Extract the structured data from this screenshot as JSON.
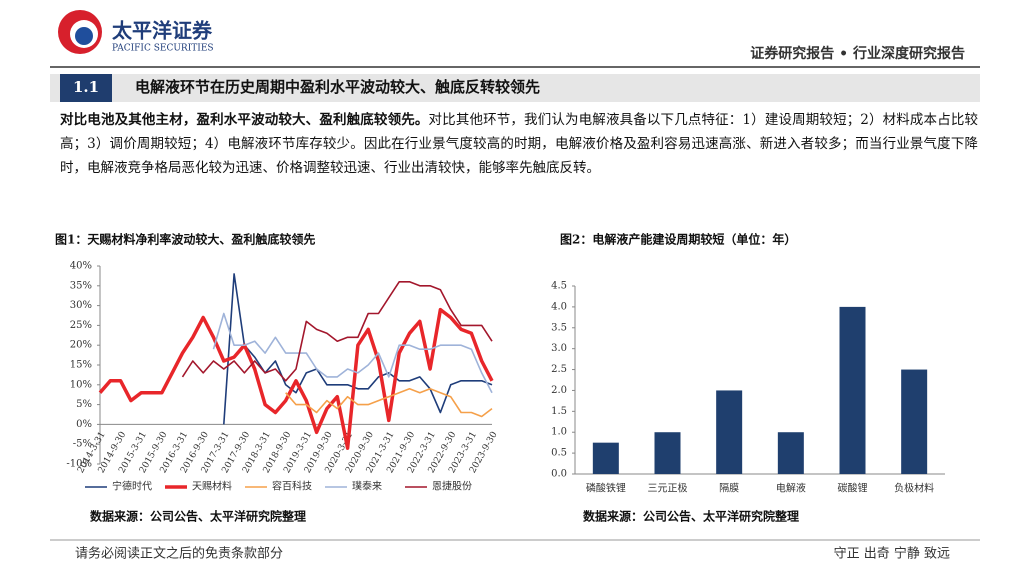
{
  "header": {
    "brand": "太平洋证券",
    "brand_en": "PACIFIC SECURITIES",
    "report_type": "证券研究报告 • 行业深度研究报告"
  },
  "section": {
    "number": "1.1",
    "title": "电解液环节在历史周期中盈利水平波动较大、触底反转较领先"
  },
  "paragraph": {
    "lead": "对比电池及其他主材，盈利水平波动较大、盈利触底较领先。",
    "text": "对比其他环节，我们认为电解液具备以下几点特征：1）建设周期较短；2）材料成本占比较高；3）调价周期较短；4）电解液环节库存较少。因此在行业景气度较高的时期，电解液价格及盈利容易迅速高涨、新进入者较多；而当行业景气度下降时，电解液竞争格局恶化较为迅速、价格调整较迅速、行业出清较快，能够率先触底反转。"
  },
  "chart_data": [
    {
      "type": "line",
      "title": "图1：天赐材料净利率波动较大、盈利触底较领先",
      "source": "数据来源：公司公告、太平洋研究院整理",
      "categories": [
        "2014-3-31",
        null,
        "2014-9-30",
        null,
        "2015-3-31",
        null,
        "2015-9-30",
        null,
        "2016-3-31",
        null,
        "2016-9-30",
        null,
        "2017-3-31",
        null,
        "2017-9-30",
        null,
        "2018-3-31",
        null,
        "2018-9-30",
        null,
        "2019-3-31",
        null,
        "2019-9-30",
        null,
        "2020-3-31",
        null,
        "2020-9-30",
        null,
        "2021-3-31",
        null,
        "2021-9-30",
        null,
        "2022-3-31",
        null,
        "2022-9-30",
        null,
        "2023-3-31",
        null,
        "2023-9-30"
      ],
      "series": [
        {
          "name": "宁德时代",
          "color": "#1f3d7a",
          "values": [
            null,
            null,
            null,
            null,
            null,
            null,
            null,
            null,
            null,
            null,
            null,
            null,
            0,
            38,
            20,
            17,
            13,
            16,
            10,
            8,
            13,
            14,
            10,
            10,
            10,
            9,
            9,
            12,
            13,
            11,
            11,
            12,
            9,
            3,
            10,
            11,
            11,
            11,
            10
          ]
        },
        {
          "name": "天赐材料",
          "color": "#e8262a",
          "values": [
            8,
            11,
            11,
            6,
            8,
            8,
            8,
            13,
            18,
            22,
            27,
            22,
            16,
            17,
            20,
            14,
            5,
            3,
            6,
            11,
            6,
            -2,
            4,
            7,
            -6,
            20,
            24,
            16,
            1,
            18,
            23,
            26,
            14,
            29,
            27,
            24,
            23,
            16,
            11
          ]
        },
        {
          "name": "容百科技",
          "color": "#f5a04a",
          "values": [
            null,
            null,
            null,
            null,
            null,
            null,
            null,
            null,
            null,
            null,
            null,
            null,
            null,
            null,
            null,
            null,
            null,
            null,
            8,
            5,
            5,
            3,
            6,
            4,
            7,
            5,
            5,
            6,
            7,
            8,
            9,
            8,
            9,
            8,
            7,
            3,
            3,
            2,
            4
          ]
        },
        {
          "name": "璞泰来",
          "color": "#9fb3d9",
          "values": [
            null,
            null,
            null,
            null,
            null,
            null,
            null,
            null,
            null,
            null,
            null,
            19,
            28,
            20,
            20,
            21,
            18,
            22,
            18,
            18,
            18,
            14,
            12,
            12,
            14,
            13,
            15,
            18,
            12,
            20,
            20,
            19,
            19,
            20,
            20,
            20,
            19,
            13,
            8
          ]
        },
        {
          "name": "恩捷股份",
          "color": "#a3172c",
          "values": [
            null,
            null,
            null,
            null,
            null,
            null,
            null,
            null,
            12,
            16,
            13,
            16,
            14,
            16,
            13,
            16,
            13,
            14,
            11,
            14,
            26,
            24,
            23,
            21,
            22,
            22,
            28,
            28,
            32,
            36,
            36,
            35,
            35,
            34,
            29,
            25,
            25,
            25,
            21
          ]
        }
      ],
      "ylim": [
        -10,
        40
      ],
      "yticks": [
        {
          "value": -10,
          "label": "-10%"
        },
        {
          "value": -5,
          "label": "-5%"
        },
        {
          "value": 0,
          "label": "0%"
        },
        {
          "value": 5,
          "label": "5%"
        },
        {
          "value": 10,
          "label": "10%"
        },
        {
          "value": 15,
          "label": "15%"
        },
        {
          "value": 20,
          "label": "20%"
        },
        {
          "value": 25,
          "label": "25%"
        },
        {
          "value": 30,
          "label": "30%"
        },
        {
          "value": 35,
          "label": "35%"
        },
        {
          "value": 40,
          "label": "40%"
        }
      ],
      "grid": false,
      "legend": "bottom"
    },
    {
      "type": "bar",
      "title": "图2：电解液产能建设周期较短（单位：年）",
      "source": "数据来源：公司公告、太平洋研究院整理",
      "categories": [
        "磷酸铁锂",
        "三元正极",
        "隔膜",
        "电解液",
        "碳酸锂",
        "负极材料"
      ],
      "values": [
        0.75,
        1,
        2,
        1,
        4,
        2.5
      ],
      "color": "#1f3f6e",
      "ylim": [
        0,
        4.5
      ],
      "yticks": [
        {
          "value": 0,
          "label": "0.0"
        },
        0.5,
        {
          "value": 1,
          "label": "1.0"
        },
        1.5,
        {
          "value": 2,
          "label": "2.0"
        },
        2.5,
        {
          "value": 3,
          "label": "3.0"
        },
        3.5,
        {
          "value": 4,
          "label": "4.0"
        },
        4.5
      ],
      "grid": false
    }
  ],
  "footer": {
    "disclaimer": "请务必阅读正文之后的免责条款部分",
    "motto": "守正 出奇 宁静 致远"
  }
}
